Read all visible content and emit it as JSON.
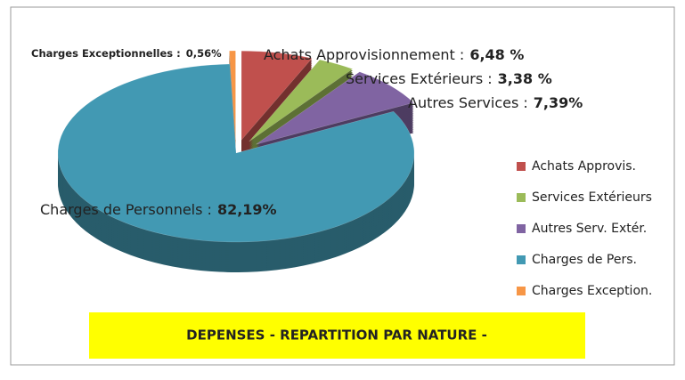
{
  "chart_data": {
    "type": "pie",
    "title": "DEPENSES - REPARTITION PAR NATURE -",
    "categories": [
      "Achats Approvis.",
      "Services Extérieurs",
      "Autres Serv. Extér.",
      "Charges de Pers.",
      "Charges Exception."
    ],
    "values": [
      6.48,
      3.38,
      7.39,
      82.19,
      0.56
    ],
    "slice_labels": [
      "Achats  Approvisionnement :",
      "Services Extérieurs :",
      "Autres Services :",
      "Charges de Personnels :",
      "Charges Exceptionnelles :"
    ],
    "value_labels": [
      "6,48 %",
      "3,38 %",
      "7,39%",
      "82,19%",
      "0,56%"
    ],
    "colors": [
      "#c0504d",
      "#9bbb59",
      "#8064a2",
      "#4299b3",
      "#f79646"
    ],
    "legend": "right"
  }
}
